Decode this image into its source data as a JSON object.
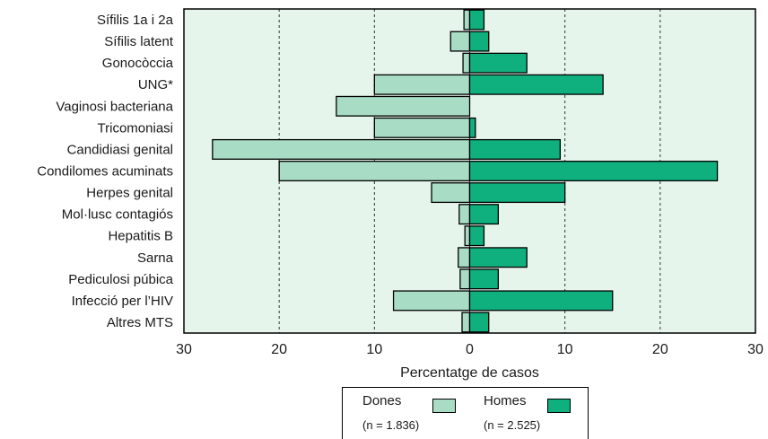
{
  "chart_data": {
    "type": "bar",
    "orientation": "horizontal-pyramid",
    "categories": [
      "Sífilis 1a i 2a",
      "Sífilis latent",
      "Gonocòccia",
      "UNG*",
      "Vaginosi bacteriana",
      "Tricomoniasi",
      "Candidiasi genital",
      "Condilomes acuminats",
      "Herpes genital",
      "Mol·lusc contagiós",
      "Hepatitis B",
      "Sarna",
      "Pediculosi púbica",
      "Infecció per l’HIV",
      "Altres MTS"
    ],
    "series": [
      {
        "name": "Dones",
        "side": "left",
        "color": "#a8dcc4",
        "values": [
          0.6,
          2.0,
          0.7,
          10.0,
          14.0,
          10.0,
          27.0,
          20.0,
          4.0,
          1.1,
          0.5,
          1.2,
          1.0,
          8.0,
          0.8
        ]
      },
      {
        "name": "Homes",
        "side": "right",
        "color": "#10b07e",
        "values": [
          1.5,
          2.0,
          6.0,
          14.0,
          0.0,
          0.6,
          9.5,
          26.0,
          10.0,
          3.0,
          1.5,
          6.0,
          3.0,
          15.0,
          2.0
        ]
      }
    ],
    "xlabel": "Percentatge de casos",
    "xlim": [
      -30,
      30
    ],
    "xticks": [
      -30,
      -20,
      -10,
      0,
      10,
      20,
      30
    ],
    "xtick_labels": [
      "30",
      "20",
      "10",
      "0",
      "10",
      "20",
      "30"
    ],
    "grid": "vertical dashed",
    "plot_background": "#e6f5ec",
    "legend": {
      "placement": "bottom-center",
      "items": [
        {
          "label": "Dones",
          "sub": "(n = 1.836)"
        },
        {
          "label": "Homes",
          "sub": "(n = 2.525)"
        }
      ]
    }
  }
}
